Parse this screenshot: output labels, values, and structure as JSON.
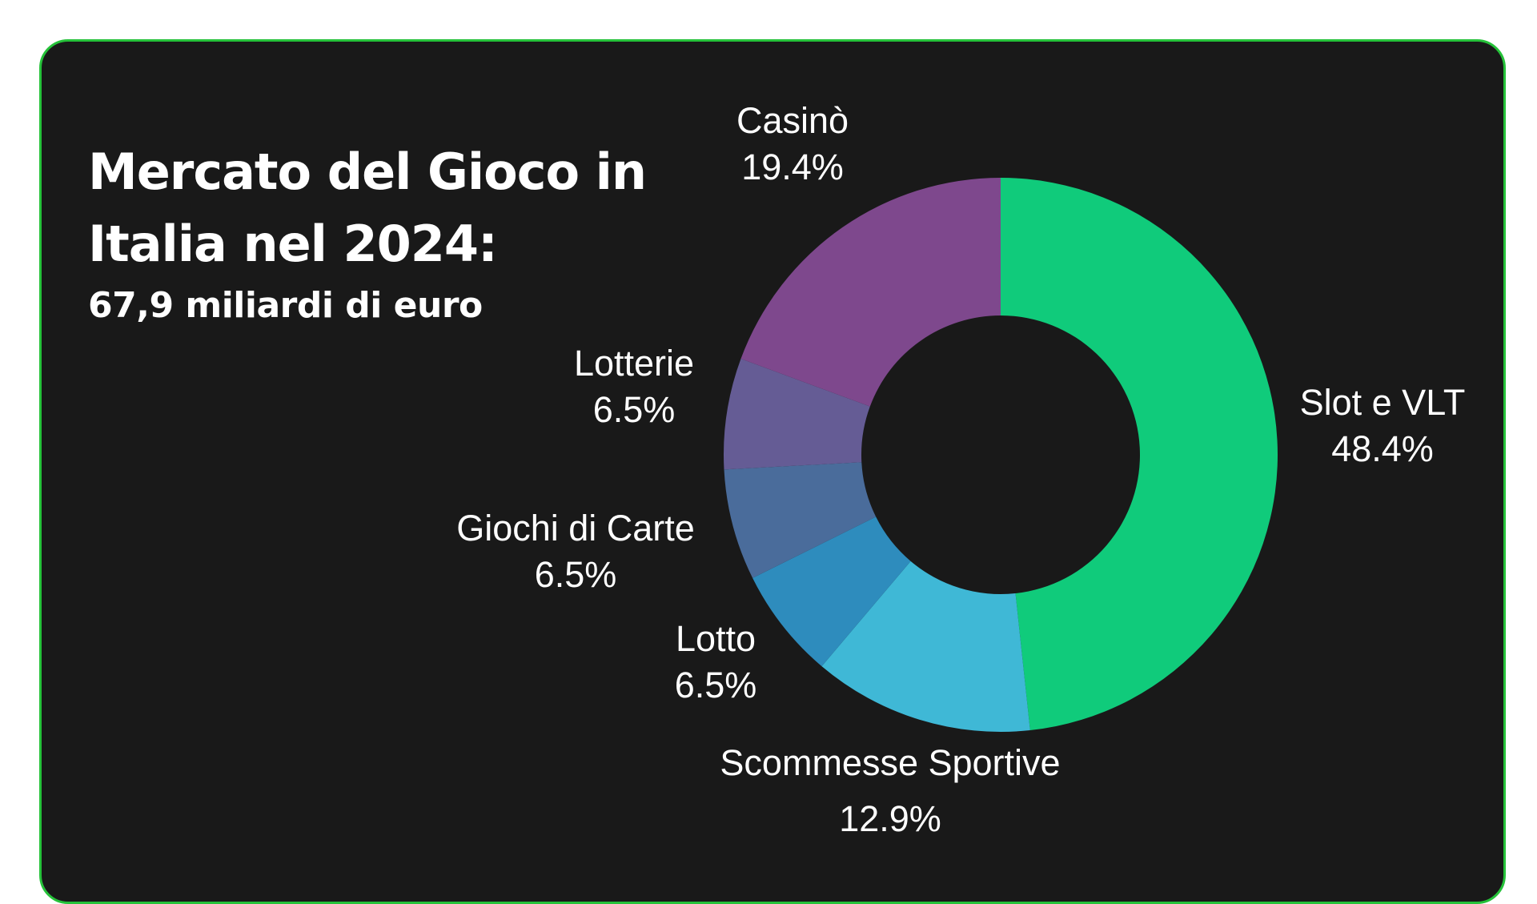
{
  "header": {
    "title": "Mercato del Gioco in Italia nel 2024:",
    "subtitle": "67,9 miliardi di euro"
  },
  "colors": {
    "card_background": "#191919",
    "card_border": "#26c23a",
    "text": "#ffffff"
  },
  "chart_data": {
    "type": "pie",
    "title": "Mercato del Gioco in Italia nel 2024:",
    "subtitle": "67,9 miliardi di euro",
    "donut": true,
    "categories": [
      "Slot e VLT",
      "Scommesse Sportive",
      "Lotto",
      "Giochi di Carte",
      "Lotterie",
      "Casinò"
    ],
    "values": [
      48.4,
      12.9,
      6.5,
      6.5,
      6.5,
      19.4
    ],
    "value_labels": [
      "48.4%",
      "12.9%",
      "6.5%",
      "6.5%",
      "6.5%",
      "19.4%"
    ],
    "colors": [
      "#10cb7b",
      "#3fb8d6",
      "#2e8cbd",
      "#4a6c9b",
      "#655c95",
      "#7e488d"
    ],
    "start": "top",
    "direction": "clockwise"
  }
}
